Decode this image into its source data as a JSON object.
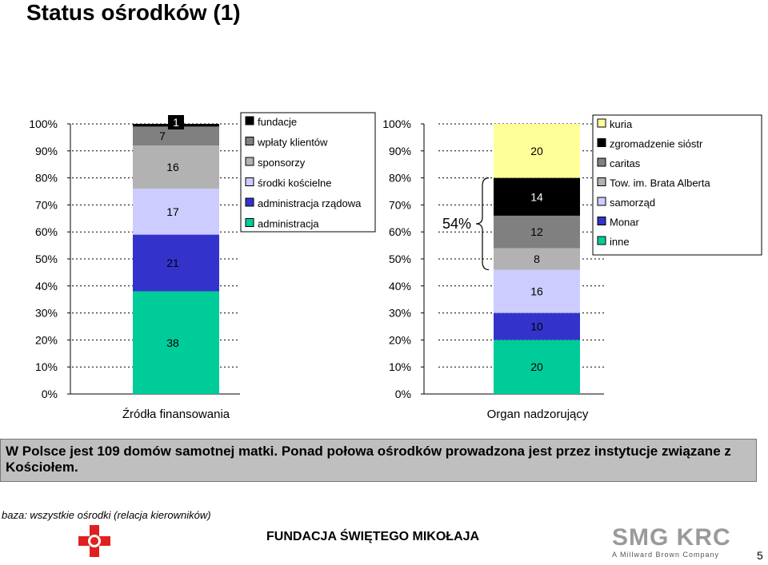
{
  "page": {
    "title": "Status ośrodków (1)",
    "summary": "W Polsce jest 109 domów samotnej matki. Ponad połowa ośrodków prowadzona jest przez instytucje związane z Kościołem.",
    "base_note": "baza: wszystkie ośrodki (relacja kierowników)",
    "footer_org": "FUNDACJA ŚWIĘTEGO MIKOŁAJA",
    "page_number": "5",
    "logo_text": "A Millward Brown Company",
    "logo_mark": "SMG KRC"
  },
  "chart_data": [
    {
      "type": "bar",
      "stacked": true,
      "xlabel": "Źródła finansowania",
      "ylim": [
        0,
        100
      ],
      "yticks": [
        "0%",
        "10%",
        "20%",
        "30%",
        "40%",
        "50%",
        "60%",
        "70%",
        "80%",
        "90%",
        "100%"
      ],
      "legend_position": "top-right",
      "series": [
        {
          "name": "administracja",
          "value": 38,
          "label": "38",
          "color": "#00cc99"
        },
        {
          "name": "administracja rządowa",
          "value": 21,
          "label": "21",
          "color": "#3333cc"
        },
        {
          "name": "środki kościelne",
          "value": 17,
          "label": "17",
          "color": "#ccccff"
        },
        {
          "name": "sponsorzy",
          "value": 16,
          "label": "16",
          "color": "#b2b2b2"
        },
        {
          "name": "wpłaty klientów",
          "value": 7,
          "label": "7",
          "color": "#808080"
        },
        {
          "name": "fundacje",
          "value": 1,
          "label": "1",
          "color": "#000000"
        }
      ]
    },
    {
      "type": "bar",
      "stacked": true,
      "xlabel": "Organ nadzorujący",
      "ylim": [
        0,
        100
      ],
      "yticks": [
        "0%",
        "10%",
        "20%",
        "30%",
        "40%",
        "50%",
        "60%",
        "70%",
        "80%",
        "90%",
        "100%"
      ],
      "legend_position": "top-right",
      "annotation": "54%",
      "series": [
        {
          "name": "inne",
          "value": 20,
          "label": "20",
          "color": "#00cc99"
        },
        {
          "name": "Monar",
          "value": 10,
          "label": "10",
          "color": "#3333cc"
        },
        {
          "name": "samorząd",
          "value": 16,
          "label": "16",
          "color": "#ccccff"
        },
        {
          "name": "Tow. im. Brata Alberta",
          "value": 8,
          "label": "8",
          "color": "#b2b2b2"
        },
        {
          "name": "caritas",
          "value": 12,
          "label": "12",
          "color": "#808080"
        },
        {
          "name": "zgromadzenie siόstr",
          "value": 14,
          "label": "14",
          "color": "#000000"
        },
        {
          "name": "kuria",
          "value": 20,
          "label": "20",
          "color": "#ffff99"
        }
      ]
    }
  ]
}
